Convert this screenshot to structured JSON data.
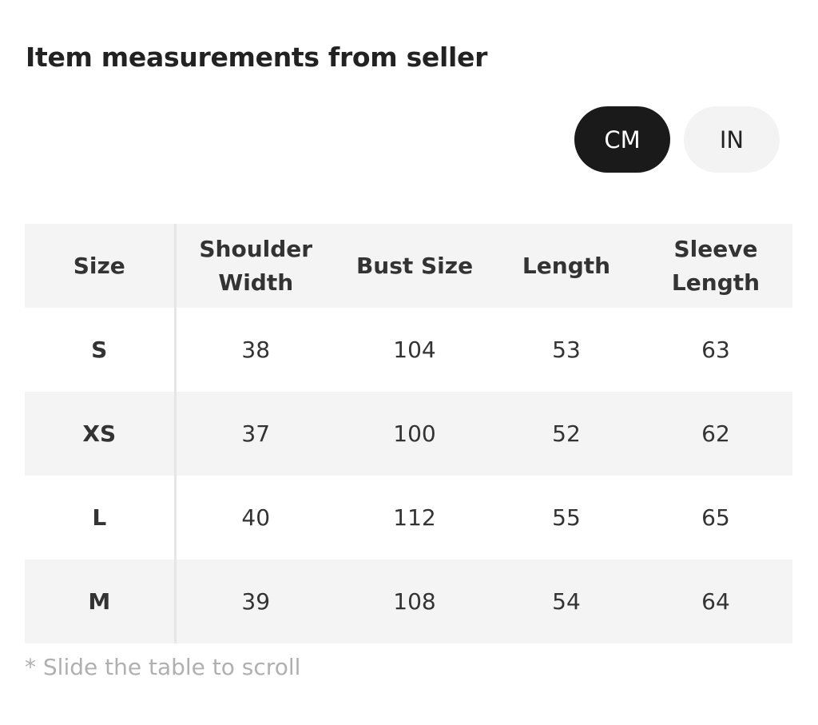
{
  "header": {
    "title": "Item measurements from seller"
  },
  "unit_toggle": {
    "options": [
      "CM",
      "IN"
    ],
    "selected": 0
  },
  "table": {
    "columns": [
      "Size",
      "Shoulder Width",
      "Bust Size",
      "Length",
      "Sleeve Length"
    ],
    "rows": [
      [
        "S",
        38,
        104,
        53,
        63
      ],
      [
        "XS",
        37,
        100,
        52,
        62
      ],
      [
        "L",
        40,
        112,
        55,
        65
      ],
      [
        "M",
        39,
        108,
        54,
        64
      ]
    ]
  },
  "footnote": "* Slide the table to scroll"
}
